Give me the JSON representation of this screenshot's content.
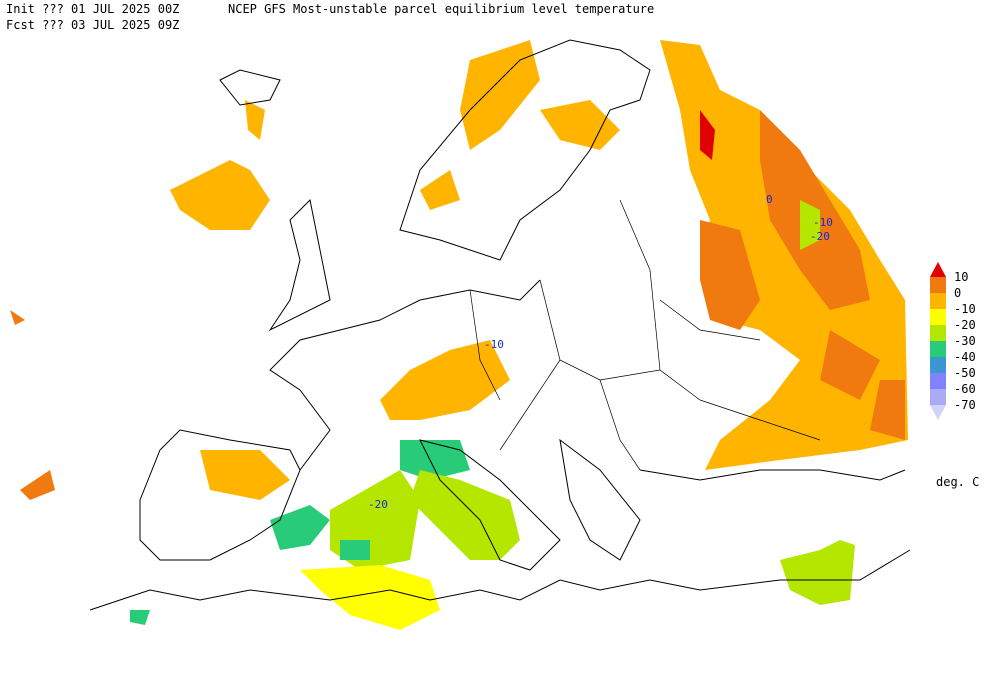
{
  "header": {
    "init": "Init  ??? 01 JUL 2025 00Z",
    "fcst": "Fcst ??? 03 JUL 2025 09Z",
    "title": "NCEP GFS Most-unstable parcel equilibrium level temperature"
  },
  "legend": {
    "levels": [
      10,
      0,
      -10,
      -20,
      -30,
      -40,
      -50,
      -60,
      -70
    ],
    "colors": [
      "#e00000",
      "#f07a10",
      "#ffb400",
      "#ffff00",
      "#b4e600",
      "#28cc78",
      "#3c96d2",
      "#8282ff",
      "#aaaaf5",
      "#d2d2fa"
    ],
    "unit": "deg. C"
  },
  "map": {
    "contour_labels": [
      "0",
      "-10",
      "-20",
      "-10",
      "-20"
    ]
  }
}
